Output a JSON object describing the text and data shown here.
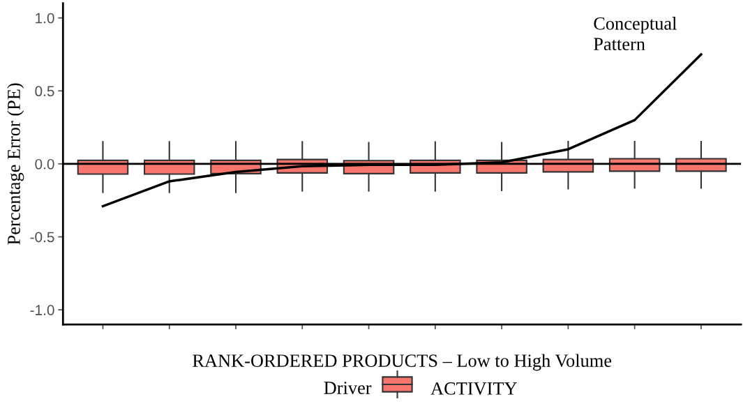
{
  "chart_data": {
    "type": "box",
    "xlabel": "RANK-ORDERED PRODUCTS – Low to High Volume",
    "ylabel": "Percentage Error (PE)",
    "legend_title": "Driver",
    "categories": [
      null,
      null,
      null,
      null,
      null,
      null,
      null,
      null,
      null,
      null
    ],
    "ylim": [
      -1.1,
      1.1
    ],
    "yticks": [
      {
        "value": -1.0,
        "label": "-1.0"
      },
      {
        "value": -0.5,
        "label": "-0.5"
      },
      {
        "value": 0.0,
        "label": "0.0"
      },
      {
        "value": 0.5,
        "label": "0.5"
      },
      {
        "value": 1.0,
        "label": "1.0"
      }
    ],
    "series": [
      {
        "name": "ACTIVITY",
        "color": "#f8766d",
        "boxes": [
          {
            "low": -0.2,
            "q1": -0.07,
            "median": 0.0,
            "q3": 0.024,
            "high": 0.156
          },
          {
            "low": -0.2,
            "q1": -0.07,
            "median": 0.0,
            "q3": 0.024,
            "high": 0.156
          },
          {
            "low": -0.2,
            "q1": -0.067,
            "median": 0.0,
            "q3": 0.024,
            "high": 0.156
          },
          {
            "low": -0.19,
            "q1": -0.062,
            "median": 0.0,
            "q3": 0.03,
            "high": 0.156
          },
          {
            "low": -0.19,
            "q1": -0.067,
            "median": 0.0,
            "q3": 0.022,
            "high": 0.15
          },
          {
            "low": -0.19,
            "q1": -0.062,
            "median": 0.0,
            "q3": 0.024,
            "high": 0.155
          },
          {
            "low": -0.187,
            "q1": -0.062,
            "median": 0.0,
            "q3": 0.024,
            "high": 0.15
          },
          {
            "low": -0.175,
            "q1": -0.055,
            "median": 0.0,
            "q3": 0.03,
            "high": 0.157
          },
          {
            "low": -0.17,
            "q1": -0.05,
            "median": 0.0,
            "q3": 0.035,
            "high": 0.157
          },
          {
            "low": -0.17,
            "q1": -0.05,
            "median": 0.0,
            "q3": 0.035,
            "high": 0.157
          }
        ]
      },
      {
        "type": "line",
        "color": "#000000",
        "values": [
          -0.29,
          -0.12,
          -0.056,
          -0.016,
          -0.007,
          -0.007,
          0.01,
          0.1,
          0.3,
          0.75
        ]
      }
    ],
    "ref_lines": [
      {
        "axis": "y",
        "value": 0,
        "color": "#000000"
      }
    ],
    "annotations": [
      "Conceptual\nPattern"
    ],
    "grid": false,
    "legend": "bottom"
  }
}
